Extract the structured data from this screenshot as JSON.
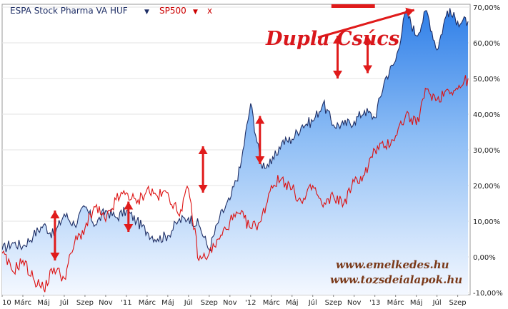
{
  "chart_data": {
    "type": "area",
    "title": "",
    "xlabel": "",
    "ylabel": "",
    "legend": {
      "placement": "top-left",
      "items": [
        {
          "label": "ESPA Stock Pharma VA HUF",
          "marker": "▼",
          "color": "#1f2f66"
        },
        {
          "label": "SP500",
          "marker": "▼",
          "close": "x",
          "color": "#cc0000"
        }
      ]
    },
    "x_ticks": [
      "10",
      "Márc",
      "Máj",
      "Júl",
      "Szep",
      "Nov",
      "'11",
      "Márc",
      "Máj",
      "Júl",
      "Szep",
      "Nov",
      "'12",
      "Márc",
      "Máj",
      "Júl",
      "Szep",
      "Nov",
      "'13",
      "Márc",
      "Máj",
      "Júl",
      "Szep"
    ],
    "y_ticks": [
      "70,00%",
      "60,00%",
      "50,00%",
      "40,00%",
      "30,00%",
      "20,00%",
      "10,00%",
      "0,00%",
      "-10,00%"
    ],
    "ylim": [
      -10,
      70
    ],
    "xlim": [
      0,
      45.2
    ],
    "grid": true,
    "series": [
      {
        "name": "ESPA Stock Pharma VA HUF",
        "color": "#1f2f66",
        "fill": "gradient-blue",
        "points": [
          [
            0,
            2
          ],
          [
            1,
            4
          ],
          [
            2,
            3
          ],
          [
            3,
            6
          ],
          [
            4,
            9
          ],
          [
            5,
            6
          ],
          [
            6,
            12
          ],
          [
            7,
            9
          ],
          [
            8,
            14
          ],
          [
            9,
            9
          ],
          [
            10,
            13
          ],
          [
            11,
            11
          ],
          [
            12,
            13
          ],
          [
            13,
            10
          ],
          [
            14,
            7
          ],
          [
            15,
            5
          ],
          [
            16,
            6
          ],
          [
            17,
            10
          ],
          [
            18,
            11
          ],
          [
            19,
            9
          ],
          [
            20,
            2
          ],
          [
            21,
            11
          ],
          [
            22,
            16
          ],
          [
            23,
            25
          ],
          [
            24,
            43
          ],
          [
            25,
            26
          ],
          [
            26,
            26
          ],
          [
            27,
            32
          ],
          [
            28,
            33
          ],
          [
            29,
            37
          ],
          [
            30,
            38
          ],
          [
            31,
            43
          ],
          [
            32,
            37
          ],
          [
            33,
            37
          ],
          [
            34,
            38
          ],
          [
            35,
            41
          ],
          [
            36,
            39
          ],
          [
            37,
            50
          ],
          [
            38,
            55
          ],
          [
            39,
            69
          ],
          [
            40,
            62
          ],
          [
            41,
            69
          ],
          [
            42,
            58
          ],
          [
            43,
            69
          ],
          [
            44,
            66
          ],
          [
            45,
            66
          ]
        ]
      },
      {
        "name": "SP500",
        "color": "#dd1111",
        "points": [
          [
            0,
            1
          ],
          [
            1,
            -4
          ],
          [
            2,
            -1
          ],
          [
            3,
            -6
          ],
          [
            4,
            -9
          ],
          [
            5,
            -3
          ],
          [
            6,
            -6
          ],
          [
            7,
            4
          ],
          [
            8,
            8
          ],
          [
            9,
            14
          ],
          [
            10,
            10
          ],
          [
            11,
            16
          ],
          [
            12,
            18
          ],
          [
            13,
            15
          ],
          [
            14,
            19
          ],
          [
            15,
            17
          ],
          [
            16,
            18
          ],
          [
            17,
            12
          ],
          [
            18,
            19
          ],
          [
            19,
            -1
          ],
          [
            20,
            1
          ],
          [
            21,
            5
          ],
          [
            22,
            10
          ],
          [
            23,
            12
          ],
          [
            24,
            8
          ],
          [
            25,
            10
          ],
          [
            26,
            20
          ],
          [
            27,
            22
          ],
          [
            28,
            19
          ],
          [
            29,
            15
          ],
          [
            30,
            20
          ],
          [
            31,
            14
          ],
          [
            32,
            17
          ],
          [
            33,
            15
          ],
          [
            34,
            21
          ],
          [
            35,
            23
          ],
          [
            36,
            30
          ],
          [
            37,
            31
          ],
          [
            38,
            34
          ],
          [
            39,
            40
          ],
          [
            40,
            37
          ],
          [
            41,
            47
          ],
          [
            42,
            44
          ],
          [
            43,
            47
          ],
          [
            44,
            47
          ],
          [
            45,
            50
          ]
        ]
      }
    ],
    "annotations": [
      {
        "type": "text",
        "text": "Dupla Csúcs",
        "color": "#d9161b"
      },
      {
        "type": "arrow",
        "from": [
          30.5,
          61.5
        ],
        "to": [
          39.8,
          69.2
        ],
        "heads": "end"
      },
      {
        "type": "arrow",
        "from": [
          5.1,
          13
        ],
        "to": [
          5.1,
          -1
        ],
        "heads": "both"
      },
      {
        "type": "arrow",
        "from": [
          12.2,
          15.5
        ],
        "to": [
          12.2,
          7
        ],
        "heads": "both"
      },
      {
        "type": "arrow",
        "from": [
          19.4,
          31
        ],
        "to": [
          19.4,
          18
        ],
        "heads": "both"
      },
      {
        "type": "arrow",
        "from": [
          24.9,
          39.5
        ],
        "to": [
          24.9,
          26
        ],
        "heads": "both"
      },
      {
        "type": "arrow",
        "from": [
          32.4,
          62
        ],
        "to": [
          32.4,
          50
        ],
        "heads": "both"
      },
      {
        "type": "arrow",
        "from": [
          35.3,
          62
        ],
        "to": [
          35.3,
          51.5
        ],
        "heads": "both"
      }
    ],
    "highlight_bar": {
      "y": 70,
      "x_range": [
        31.8,
        36
      ],
      "color": "#e01b1b"
    },
    "watermark": [
      "www.emelkedes.hu",
      "www.tozsdeialapok.hu"
    ]
  }
}
